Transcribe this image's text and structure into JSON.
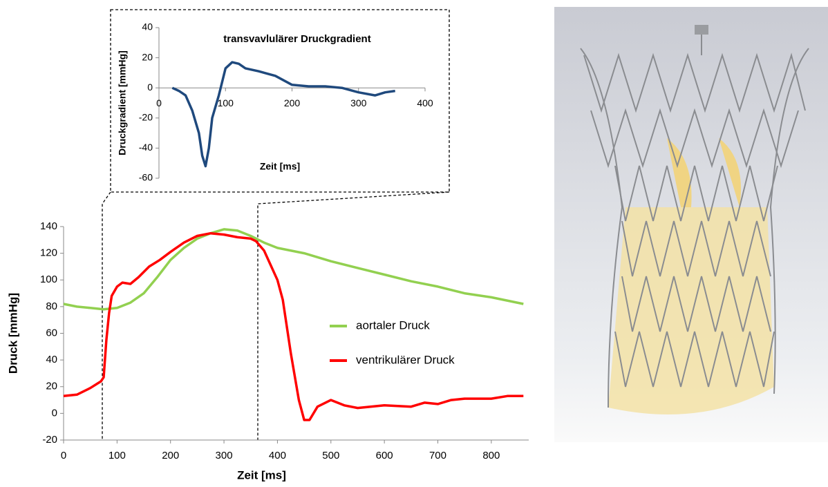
{
  "chart_data": [
    {
      "type": "line",
      "x_label": "Zeit [ms]",
      "y_label": "Druck [mmHg]",
      "xlim": [
        0,
        870
      ],
      "xticks": [
        0,
        100,
        200,
        300,
        400,
        500,
        600,
        700,
        800
      ],
      "ylim": [
        -20,
        140
      ],
      "yticks": [
        -20,
        0,
        20,
        40,
        60,
        80,
        100,
        120,
        140
      ],
      "legend": "right",
      "series": [
        {
          "name": "aortaler Druck",
          "color": "#92d050",
          "x": [
            0,
            25,
            50,
            75,
            100,
            125,
            150,
            175,
            200,
            225,
            250,
            275,
            300,
            325,
            350,
            375,
            400,
            450,
            500,
            550,
            600,
            650,
            700,
            750,
            800,
            860
          ],
          "values": [
            82,
            80,
            79,
            78,
            79,
            83,
            90,
            102,
            115,
            124,
            131,
            135,
            138,
            137,
            133,
            128,
            124,
            120,
            114,
            109,
            104,
            99,
            95,
            90,
            87,
            82
          ]
        },
        {
          "name": "ventrikulärer Druck",
          "color": "#ff0000",
          "x": [
            0,
            25,
            50,
            70,
            75,
            80,
            85,
            90,
            100,
            110,
            125,
            140,
            160,
            180,
            200,
            225,
            250,
            275,
            300,
            325,
            350,
            360,
            375,
            400,
            410,
            425,
            440,
            450,
            460,
            475,
            500,
            525,
            550,
            600,
            650,
            675,
            700,
            725,
            750,
            800,
            830,
            860
          ],
          "values": [
            13,
            14,
            19,
            24,
            27,
            55,
            75,
            88,
            95,
            98,
            97,
            102,
            110,
            115,
            121,
            128,
            133,
            135,
            134,
            132,
            131,
            129,
            122,
            100,
            85,
            45,
            10,
            -5,
            -5,
            5,
            10,
            6,
            4,
            6,
            5,
            8,
            7,
            10,
            11,
            11,
            13,
            13
          ]
        }
      ]
    },
    {
      "type": "line",
      "title": "transvavlulärer Druckgradient",
      "x_label": "Zeit [ms]",
      "y_label": "Druckgradient [mmHg]",
      "xlim": [
        0,
        400
      ],
      "xticks": [
        0,
        100,
        200,
        300,
        400
      ],
      "ylim": [
        -60,
        40
      ],
      "yticks": [
        -60,
        -40,
        -20,
        0,
        20,
        40
      ],
      "series": [
        {
          "color": "#1f497d",
          "x": [
            20,
            30,
            40,
            50,
            60,
            65,
            70,
            75,
            80,
            90,
            100,
            110,
            120,
            130,
            150,
            175,
            200,
            225,
            250,
            275,
            300,
            325,
            340,
            355
          ],
          "values": [
            0,
            -2,
            -5,
            -15,
            -30,
            -45,
            -52,
            -40,
            -20,
            -5,
            13,
            17,
            16,
            13,
            11,
            8,
            2,
            1,
            1,
            0,
            -3,
            -5,
            -3,
            -2
          ]
        }
      ]
    }
  ]
}
